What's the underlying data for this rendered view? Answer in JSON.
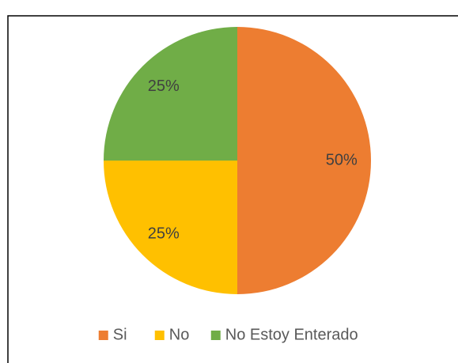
{
  "chart_data": {
    "type": "pie",
    "categories": [
      "Si",
      "No",
      "No Estoy Enterado"
    ],
    "values": [
      50,
      25,
      25
    ],
    "value_labels": [
      "50%",
      "25%",
      "25%"
    ],
    "colors": [
      "#ed7d31",
      "#ffc000",
      "#70ad47"
    ],
    "legend": "bottom"
  }
}
